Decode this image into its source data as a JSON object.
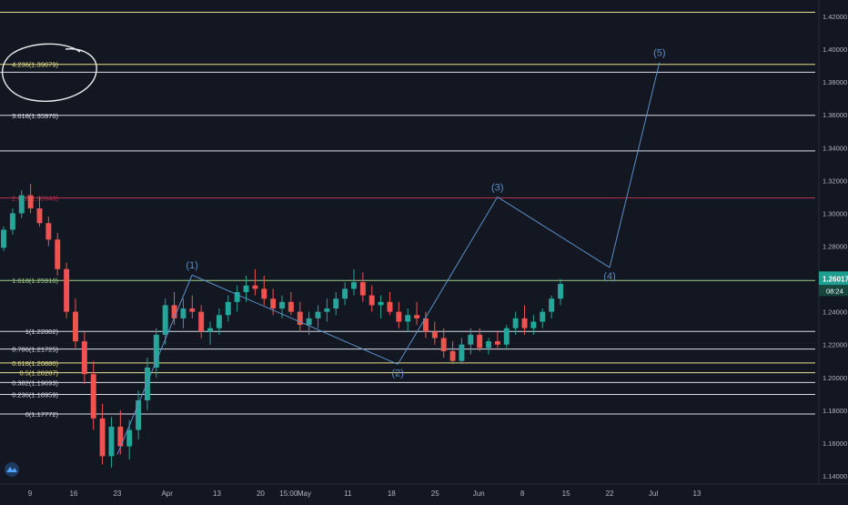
{
  "colors": {
    "background": "#131722",
    "bull": "#26a69a",
    "bear": "#ef5350",
    "line_white": "#d8dde6",
    "line_yellow": "#e8e08a",
    "line_red": "#b2324a",
    "line_green": "#9fd08a",
    "wave": "#5b8fc7",
    "axis_text": "#b2b5be",
    "price_tag_bg": "#1f9d8e",
    "price_tag_bg2": "#17463f"
  },
  "chart_data": {
    "type": "candlestick",
    "ylim": [
      1.135,
      1.43
    ],
    "x_tick_labels": [
      {
        "x": 0,
        "label": "9"
      },
      {
        "x": 7,
        "label": "16"
      },
      {
        "x": 14,
        "label": "23"
      },
      {
        "x": 22,
        "label": "Apr"
      },
      {
        "x": 30,
        "label": "13"
      },
      {
        "x": 37,
        "label": "20"
      },
      {
        "x": 41.5,
        "label": "15:00"
      },
      {
        "x": 44,
        "label": "May"
      },
      {
        "x": 51,
        "label": "11"
      },
      {
        "x": 58,
        "label": "18"
      },
      {
        "x": 65,
        "label": "25"
      },
      {
        "x": 72,
        "label": "Jun"
      },
      {
        "x": 79,
        "label": "8"
      },
      {
        "x": 86,
        "label": "15"
      },
      {
        "x": 93,
        "label": "22"
      },
      {
        "x": 100,
        "label": "Jul"
      },
      {
        "x": 107,
        "label": "13"
      }
    ],
    "y_ticks": [
      1.42,
      1.4,
      1.38,
      1.36,
      1.34,
      1.32,
      1.3,
      1.28,
      1.26,
      1.24,
      1.22,
      1.2,
      1.18,
      1.16,
      1.14
    ],
    "y_tick_labels": [
      "1.42000",
      "1.40000",
      "1.38000",
      "1.36000",
      "1.34000",
      "1.32000",
      "1.30000",
      "1.28000",
      "1.26000",
      "1.24000",
      "1.22000",
      "1.20000",
      "1.18000",
      "1.16000",
      "1.14000"
    ],
    "horizontal_levels": [
      {
        "value": 1.4225,
        "label": "",
        "color": "line_yellow"
      },
      {
        "value": 1.39079,
        "label": "4.236(1.39079)",
        "color": "line_yellow"
      },
      {
        "value": 1.386,
        "label": "",
        "color": "line_white"
      },
      {
        "value": 1.3597,
        "label": "3.618(1.35970)",
        "color": "line_white"
      },
      {
        "value": 1.338,
        "label": "",
        "color": "line_white"
      },
      {
        "value": 1.3094,
        "label": "2.618(1.30940)",
        "color": "line_red"
      },
      {
        "value": 1.2591,
        "label": "1.618(1.25910)",
        "color": "line_green"
      },
      {
        "value": 1.22802,
        "label": "1(1.22802)",
        "color": "line_white"
      },
      {
        "value": 1.21725,
        "label": "0.786(1.21725)",
        "color": "line_white"
      },
      {
        "value": 1.2088,
        "label": "0.618(1.20880)",
        "color": "line_yellow"
      },
      {
        "value": 1.20287,
        "label": "0.5(1.20287)",
        "color": "line_yellow"
      },
      {
        "value": 1.19693,
        "label": "0.382(1.19693)",
        "color": "line_white"
      },
      {
        "value": 1.18959,
        "label": "0.236(1.18959)",
        "color": "line_white"
      },
      {
        "value": 1.17772,
        "label": "0(1.17772)",
        "color": "line_white"
      }
    ],
    "waves": [
      {
        "label": "(1)",
        "x": 26,
        "y": 1.2624,
        "label_pos": "above"
      },
      {
        "label": "(2)",
        "x": 59,
        "y": 1.208,
        "label_pos": "below"
      },
      {
        "label": "(3)",
        "x": 75,
        "y": 1.31,
        "label_pos": "above"
      },
      {
        "label": "(4)",
        "x": 93,
        "y": 1.267,
        "label_pos": "below"
      },
      {
        "label": "(5)",
        "x": 101,
        "y": 1.392,
        "label_pos": "above"
      }
    ],
    "wave_start": {
      "x": 14,
      "y": 1.153
    },
    "last_price": "1.26017",
    "countdown": "08:24",
    "ohlc": [
      [
        1.279,
        1.292,
        1.277,
        1.29
      ],
      [
        1.29,
        1.303,
        1.287,
        1.3
      ],
      [
        1.3,
        1.314,
        1.297,
        1.311
      ],
      [
        1.311,
        1.318,
        1.3,
        1.303
      ],
      [
        1.303,
        1.31,
        1.292,
        1.294
      ],
      [
        1.294,
        1.298,
        1.28,
        1.284
      ],
      [
        1.284,
        1.288,
        1.262,
        1.266
      ],
      [
        1.266,
        1.27,
        1.236,
        1.24
      ],
      [
        1.24,
        1.248,
        1.218,
        1.222
      ],
      [
        1.222,
        1.228,
        1.196,
        1.202
      ],
      [
        1.202,
        1.21,
        1.168,
        1.175
      ],
      [
        1.175,
        1.184,
        1.147,
        1.152
      ],
      [
        1.152,
        1.176,
        1.145,
        1.17
      ],
      [
        1.17,
        1.18,
        1.153,
        1.158
      ],
      [
        1.158,
        1.174,
        1.15,
        1.168
      ],
      [
        1.168,
        1.192,
        1.162,
        1.186
      ],
      [
        1.186,
        1.212,
        1.18,
        1.206
      ],
      [
        1.206,
        1.23,
        1.2,
        1.226
      ],
      [
        1.226,
        1.248,
        1.22,
        1.244
      ],
      [
        1.244,
        1.252,
        1.232,
        1.236
      ],
      [
        1.236,
        1.248,
        1.23,
        1.242
      ],
      [
        1.242,
        1.25,
        1.236,
        1.24
      ],
      [
        1.24,
        1.244,
        1.224,
        1.228
      ],
      [
        1.228,
        1.234,
        1.22,
        1.23
      ],
      [
        1.23,
        1.242,
        1.226,
        1.238
      ],
      [
        1.238,
        1.25,
        1.234,
        1.246
      ],
      [
        1.246,
        1.256,
        1.24,
        1.252
      ],
      [
        1.252,
        1.262,
        1.246,
        1.256
      ],
      [
        1.256,
        1.266,
        1.25,
        1.254
      ],
      [
        1.254,
        1.262,
        1.244,
        1.248
      ],
      [
        1.248,
        1.254,
        1.238,
        1.242
      ],
      [
        1.242,
        1.25,
        1.236,
        1.246
      ],
      [
        1.246,
        1.252,
        1.238,
        1.24
      ],
      [
        1.24,
        1.246,
        1.228,
        1.232
      ],
      [
        1.232,
        1.24,
        1.226,
        1.236
      ],
      [
        1.236,
        1.244,
        1.23,
        1.24
      ],
      [
        1.24,
        1.248,
        1.234,
        1.242
      ],
      [
        1.242,
        1.252,
        1.238,
        1.248
      ],
      [
        1.248,
        1.258,
        1.244,
        1.254
      ],
      [
        1.254,
        1.266,
        1.25,
        1.258
      ],
      [
        1.258,
        1.264,
        1.246,
        1.25
      ],
      [
        1.25,
        1.256,
        1.24,
        1.244
      ],
      [
        1.244,
        1.25,
        1.236,
        1.246
      ],
      [
        1.246,
        1.252,
        1.238,
        1.24
      ],
      [
        1.24,
        1.246,
        1.23,
        1.234
      ],
      [
        1.234,
        1.242,
        1.228,
        1.238
      ],
      [
        1.238,
        1.246,
        1.232,
        1.236
      ],
      [
        1.236,
        1.24,
        1.224,
        1.228
      ],
      [
        1.228,
        1.234,
        1.22,
        1.224
      ],
      [
        1.224,
        1.23,
        1.212,
        1.216
      ],
      [
        1.216,
        1.222,
        1.208,
        1.21
      ],
      [
        1.21,
        1.224,
        1.208,
        1.22
      ],
      [
        1.22,
        1.23,
        1.214,
        1.226
      ],
      [
        1.226,
        1.23,
        1.216,
        1.218
      ],
      [
        1.218,
        1.224,
        1.214,
        1.222
      ],
      [
        1.222,
        1.228,
        1.218,
        1.22
      ],
      [
        1.22,
        1.232,
        1.218,
        1.23
      ],
      [
        1.23,
        1.24,
        1.226,
        1.236
      ],
      [
        1.236,
        1.244,
        1.226,
        1.23
      ],
      [
        1.23,
        1.238,
        1.226,
        1.234
      ],
      [
        1.234,
        1.242,
        1.23,
        1.24
      ],
      [
        1.24,
        1.25,
        1.236,
        1.248
      ],
      [
        1.248,
        1.26,
        1.244,
        1.257
      ]
    ]
  }
}
